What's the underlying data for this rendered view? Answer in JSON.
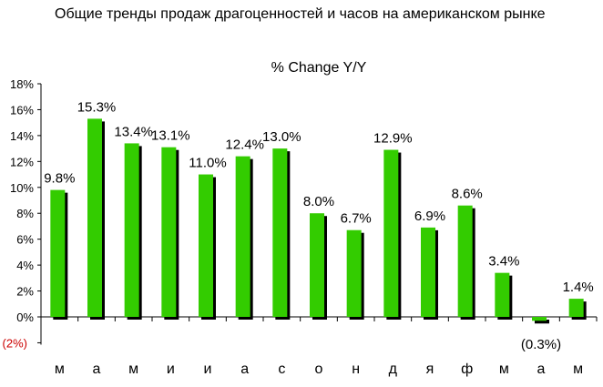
{
  "chart_data": {
    "type": "bar",
    "title": "Общие тренды продаж драгоценностей и часов на американском рынке",
    "subtitle": "% Change Y/Y",
    "categories": [
      "м",
      "а",
      "м",
      "и",
      "и",
      "а",
      "с",
      "о",
      "н",
      "д",
      "я",
      "ф",
      "м",
      "а",
      "м"
    ],
    "values": [
      9.8,
      15.3,
      13.4,
      13.1,
      11.0,
      12.4,
      13.0,
      8.0,
      6.7,
      12.9,
      6.9,
      8.6,
      3.4,
      -0.3,
      1.4
    ],
    "data_labels": [
      "9.8%",
      "15.3%",
      "13.4%",
      "13.1%",
      "11.0%",
      "12.4%",
      "13.0%",
      "8.0%",
      "6.7%",
      "12.9%",
      "6.9%",
      "8.6%",
      "3.4%",
      "(0.3%)",
      "1.4%"
    ],
    "y_ticks": [
      "18%",
      "16%",
      "14%",
      "12%",
      "10%",
      "8%",
      "6%",
      "4%",
      "2%",
      "0%",
      "(2%)"
    ],
    "ylim": [
      -2,
      18
    ],
    "grid": false,
    "colors": {
      "bar": "#33cc00",
      "shadow": "#000000",
      "negative_label": "#cc0000"
    }
  }
}
